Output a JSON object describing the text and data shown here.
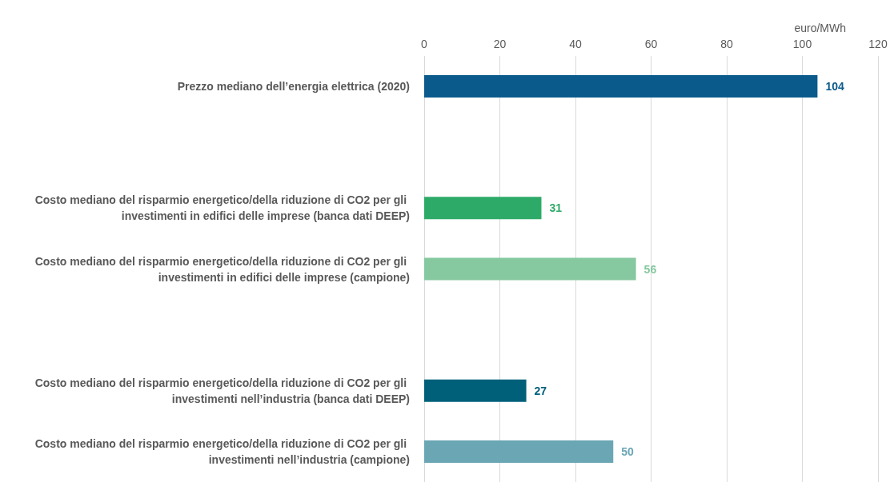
{
  "chart_data": {
    "type": "bar",
    "orientation": "horizontal",
    "xlabel": "euro/MWh",
    "categories": [
      "Prezzo mediano dell’energia elettrica (2020)",
      null,
      "Costo mediano del risparmio energetico/della riduzione di CO2 per gli investimenti in edifici delle imprese (banca dati DEEP)",
      "Costo mediano del risparmio energetico/della riduzione di CO2 per gli investimenti in edifici delle imprese (campione)",
      null,
      "Costo mediano del risparmio energetico/della riduzione di CO2 per gli investimenti nell’industria (banca dati DEEP)",
      "Costo mediano del risparmio energetico/della riduzione di CO2 per gli investimenti nell’industria (campione)"
    ],
    "values": [
      104,
      null,
      31,
      56,
      null,
      27,
      50
    ],
    "colors": [
      "#0b5a8c",
      null,
      "#2eaa68",
      "#86c8a0",
      null,
      "#00607a",
      "#6aa6b4"
    ],
    "xlim": [
      0,
      120
    ],
    "xticks": [
      0,
      20,
      40,
      60,
      80,
      100,
      120
    ],
    "grid": "x",
    "data_labels": true
  }
}
